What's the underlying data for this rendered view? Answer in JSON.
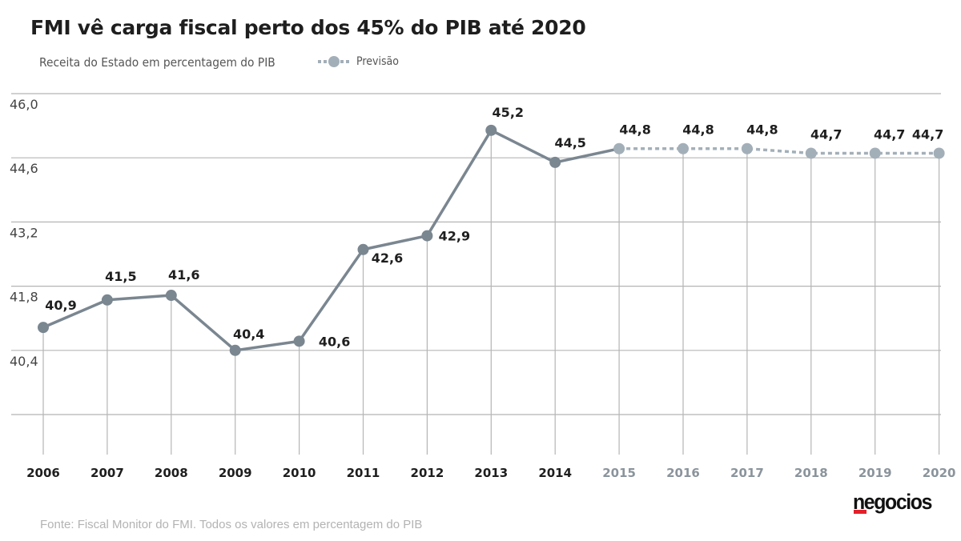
{
  "header": {
    "title": "FMI vê carga fiscal perto dos 45% do PIB até 2020",
    "subtitle": "Receita do Estado em percentagem do PIB",
    "legend_label": "Previsão"
  },
  "footer": {
    "source": "Fonte: Fiscal Monitor do FMI. Todos os valores em percentagem do PIB",
    "logo": "negocios"
  },
  "colors": {
    "actual_line": "#7a8690",
    "forecast_line": "#a3afb8",
    "grid": "#b5b5b5",
    "actual_year_label": "#1e1e1e",
    "forecast_year_label": "#8a949c",
    "logo_accent": "#e3202a"
  },
  "chart_data": {
    "type": "line",
    "title": "FMI vê carga fiscal perto dos 45% do PIB até 2020",
    "subtitle": "Receita do Estado em percentagem do PIB",
    "xlabel": "",
    "ylabel": "",
    "ylim": [
      39.0,
      46.0
    ],
    "y_ticks": [
      46.0,
      44.6,
      43.2,
      41.8,
      40.4,
      39.0
    ],
    "y_tick_labels": [
      "46,0",
      "44,6",
      "43,2",
      "41,8",
      "40,4",
      ""
    ],
    "grid": true,
    "legend": {
      "position": "top-left",
      "entries": [
        "Previsão"
      ]
    },
    "categories": [
      "2006",
      "2007",
      "2008",
      "2009",
      "2010",
      "2011",
      "2012",
      "2013",
      "2014",
      "2015",
      "2016",
      "2017",
      "2018",
      "2019",
      "2020"
    ],
    "series": [
      {
        "name": "Receita do Estado",
        "style": "solid",
        "x": [
          "2006",
          "2007",
          "2008",
          "2009",
          "2010",
          "2011",
          "2012",
          "2013",
          "2014",
          "2015"
        ],
        "values": [
          40.9,
          41.5,
          41.6,
          40.4,
          40.6,
          42.6,
          42.9,
          45.2,
          44.5,
          44.8
        ]
      },
      {
        "name": "Previsão",
        "style": "dotted",
        "x": [
          "2015",
          "2016",
          "2017",
          "2018",
          "2019",
          "2020"
        ],
        "values": [
          44.8,
          44.8,
          44.8,
          44.7,
          44.7,
          44.7
        ]
      }
    ],
    "data_labels": [
      {
        "x": "2006",
        "text": "40,9",
        "value": 40.9
      },
      {
        "x": "2007",
        "text": "41,5",
        "value": 41.5
      },
      {
        "x": "2008",
        "text": "41,6",
        "value": 41.6
      },
      {
        "x": "2009",
        "text": "40,4",
        "value": 40.4
      },
      {
        "x": "2010",
        "text": "40,6",
        "value": 40.6
      },
      {
        "x": "2011",
        "text": "42,6",
        "value": 42.6
      },
      {
        "x": "2012",
        "text": "42,9",
        "value": 42.9
      },
      {
        "x": "2013",
        "text": "45,2",
        "value": 45.2
      },
      {
        "x": "2014",
        "text": "44,5",
        "value": 44.5
      },
      {
        "x": "2015",
        "text": "44,8",
        "value": 44.8
      },
      {
        "x": "2016",
        "text": "44,8",
        "value": 44.8
      },
      {
        "x": "2017",
        "text": "44,8",
        "value": 44.8
      },
      {
        "x": "2018",
        "text": "44,7",
        "value": 44.7
      },
      {
        "x": "2019",
        "text": "44,7",
        "value": 44.7
      },
      {
        "x": "2020",
        "text": "44,7",
        "value": 44.7
      }
    ],
    "forecast_from": "2015"
  }
}
